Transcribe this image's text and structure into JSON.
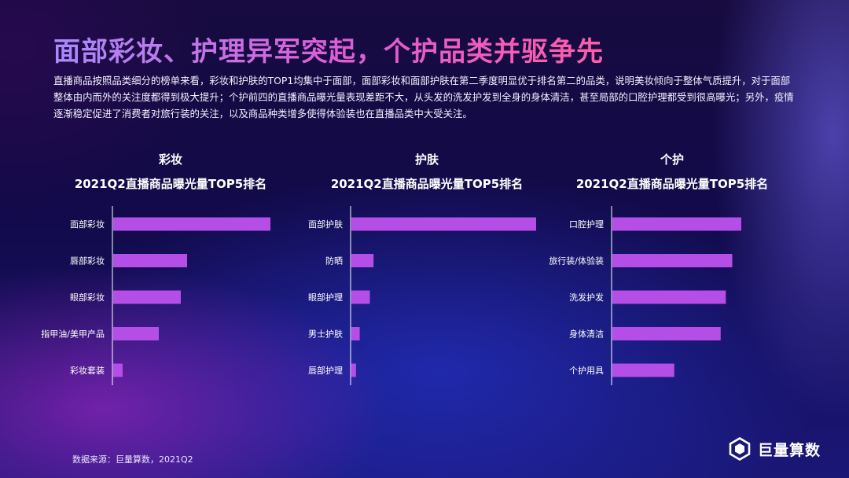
{
  "title": "面部彩妆、护理异军突起，个护品类并驱争先",
  "intro": "直播商品按照品类细分的榜单来看，彩妆和护肤的TOP1均集中于面部，面部彩妆和面部护肤在第二季度明显优于排名第二的品类，说明美妆倾向于整体气质提升，对于面部整体由内而外的关注度都得到极大提升；个护前四的直播商品曝光量表现差距不大，从头发的洗发护发到全身的身体清洁，甚至局部的口腔护理都受到很高曝光；另外，疫情逐渐稳定促进了消费者对旅行装的关注，以及商品种类增多使得体验装也在直播品类中大受关注。",
  "source": "数据来源：巨量算数，2021Q2",
  "brand": {
    "name": "巨量算数",
    "icon": "hexagon-logo-icon"
  },
  "colors": {
    "bar": "#b54ee6",
    "bar_light": "#c667f0",
    "axis": "#ffffff"
  },
  "panels": [
    {
      "category": "彩妆",
      "subtitle": "2021Q2直播商品曝光量TOP5排名"
    },
    {
      "category": "护肤",
      "subtitle": "2021Q2直播商品曝光量TOP5排名"
    },
    {
      "category": "个护",
      "subtitle": "2021Q2直播商品曝光量TOP5排名"
    }
  ],
  "chart_data": [
    {
      "type": "bar",
      "orientation": "horizontal",
      "title": "彩妆 2021Q2直播商品曝光量TOP5排名",
      "categories": [
        "面部彩妆",
        "唇部彩妆",
        "眼部彩妆",
        "指甲油/美甲产品",
        "彩妆套装"
      ],
      "values": [
        100,
        47,
        43,
        29,
        6
      ],
      "xlim": [
        0,
        100
      ],
      "grid": false,
      "legend": "none"
    },
    {
      "type": "bar",
      "orientation": "horizontal",
      "title": "护肤 2021Q2直播商品曝光量TOP5排名",
      "categories": [
        "面部护肤",
        "防晒",
        "眼部护理",
        "男士护肤",
        "唇部护理"
      ],
      "values": [
        100,
        12,
        10,
        4.5,
        2.5
      ],
      "xlim": [
        0,
        100
      ],
      "grid": false,
      "legend": "none"
    },
    {
      "type": "bar",
      "orientation": "horizontal",
      "title": "个护 2021Q2直播商品曝光量TOP5排名",
      "categories": [
        "口腔护理",
        "旅行装/体验装",
        "洗发护发",
        "身体清洁",
        "个护用具"
      ],
      "values": [
        100,
        93,
        88,
        84,
        48
      ],
      "xlim": [
        0,
        100
      ],
      "grid": false,
      "legend": "none"
    }
  ]
}
